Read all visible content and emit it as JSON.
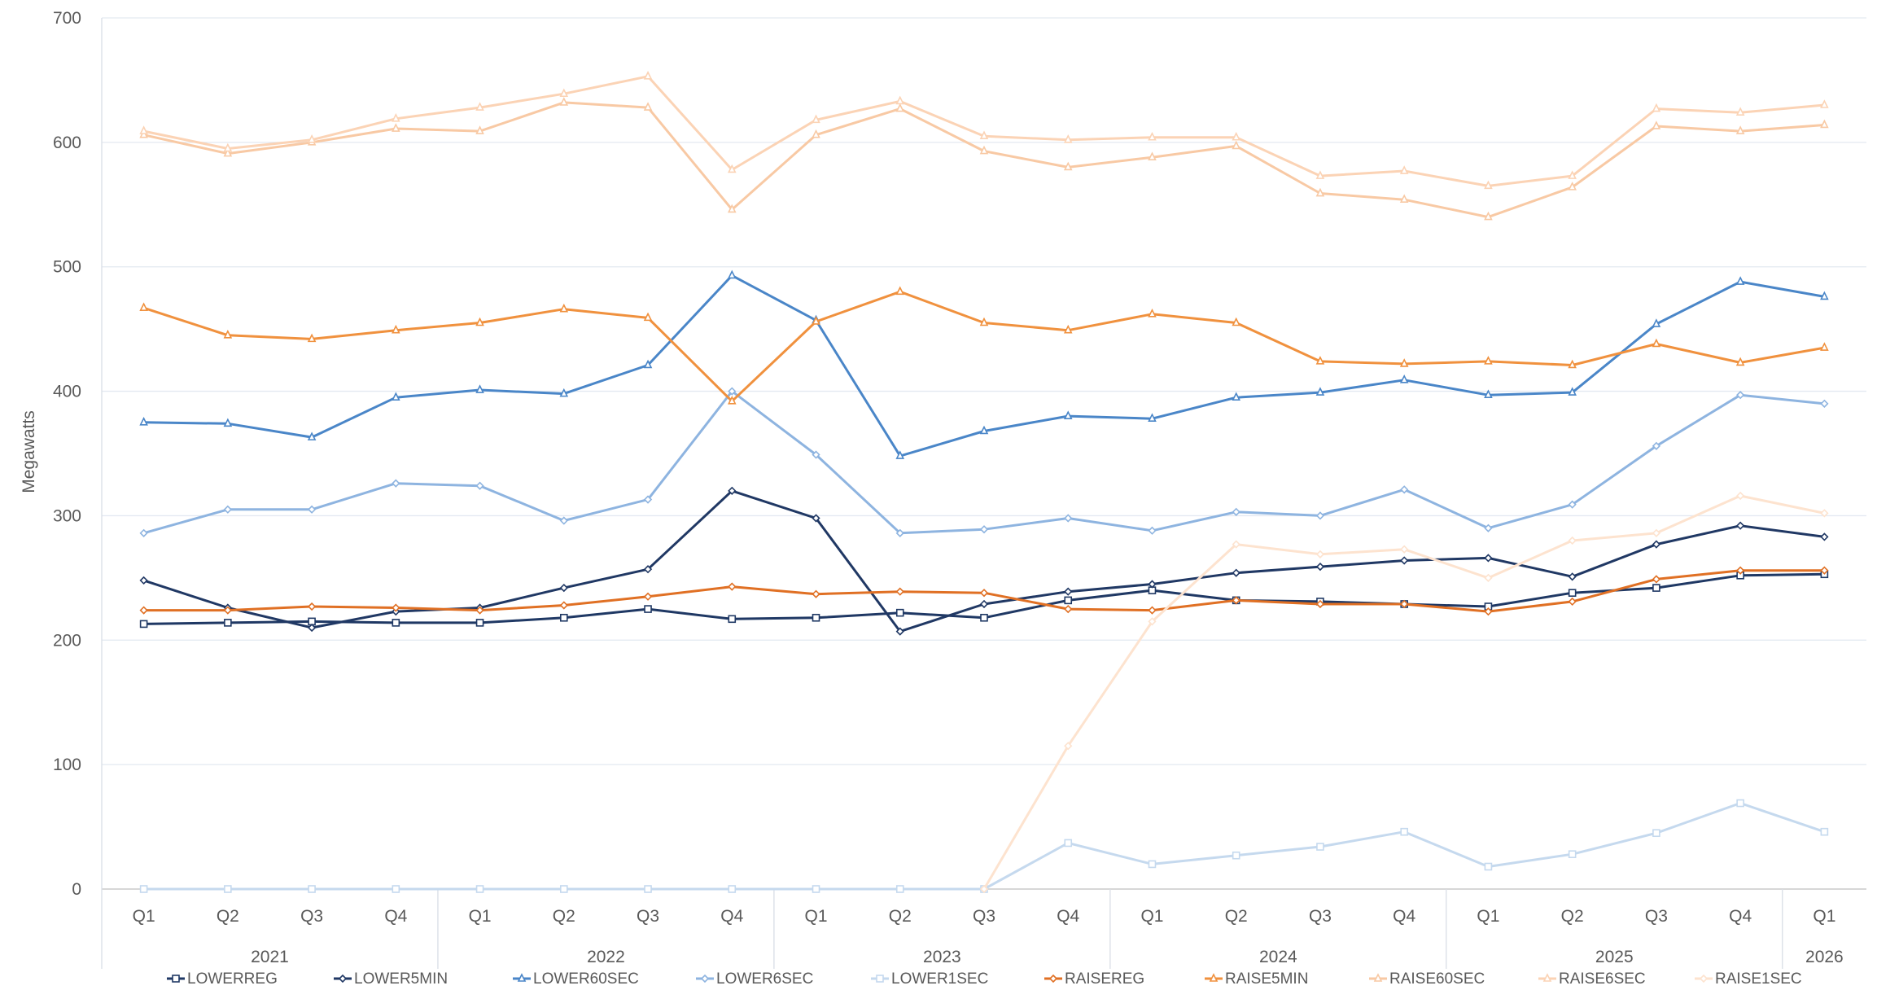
{
  "chart_data": {
    "type": "line",
    "ylabel": "Megawatts",
    "ylim": [
      0,
      700
    ],
    "yticks": [
      0,
      100,
      200,
      300,
      400,
      500,
      600,
      700
    ],
    "grid": true,
    "legend_position": "bottom",
    "categories": [
      "Q1",
      "Q2",
      "Q3",
      "Q4",
      "Q1",
      "Q2",
      "Q3",
      "Q4",
      "Q1",
      "Q2",
      "Q3",
      "Q4",
      "Q1",
      "Q2",
      "Q3",
      "Q4",
      "Q1",
      "Q2",
      "Q3",
      "Q4",
      "Q1"
    ],
    "years": [
      {
        "label": "2021",
        "count": 4
      },
      {
        "label": "2022",
        "count": 4
      },
      {
        "label": "2023",
        "count": 4
      },
      {
        "label": "2024",
        "count": 4
      },
      {
        "label": "2025",
        "count": 4
      },
      {
        "label": "2026",
        "count": 1
      }
    ],
    "series": [
      {
        "name": "LOWERREG",
        "color": "#1f3864",
        "marker": "square",
        "values": [
          213,
          214,
          215,
          214,
          214,
          218,
          225,
          217,
          218,
          222,
          218,
          232,
          240,
          232,
          231,
          229,
          227,
          238,
          242,
          252,
          253
        ]
      },
      {
        "name": "LOWER5MIN",
        "color": "#203864",
        "marker": "diamond",
        "values": [
          248,
          226,
          210,
          223,
          226,
          242,
          257,
          320,
          298,
          207,
          229,
          239,
          245,
          254,
          259,
          264,
          266,
          251,
          277,
          292,
          283
        ]
      },
      {
        "name": "LOWER60SEC",
        "color": "#4a86c8",
        "marker": "triangle",
        "values": [
          375,
          374,
          363,
          395,
          401,
          398,
          421,
          493,
          457,
          348,
          368,
          380,
          378,
          395,
          399,
          409,
          397,
          399,
          454,
          488,
          476
        ]
      },
      {
        "name": "LOWER6SEC",
        "color": "#8eb4e0",
        "marker": "diamond",
        "values": [
          286,
          305,
          305,
          326,
          324,
          296,
          313,
          400,
          349,
          286,
          289,
          298,
          288,
          303,
          300,
          321,
          290,
          309,
          356,
          397,
          390
        ]
      },
      {
        "name": "LOWER1SEC",
        "color": "#c5d9ee",
        "marker": "square",
        "values": [
          0,
          0,
          0,
          0,
          0,
          0,
          0,
          0,
          0,
          0,
          0,
          37,
          20,
          27,
          34,
          46,
          18,
          28,
          45,
          69,
          46
        ]
      },
      {
        "name": "RAISEREG",
        "color": "#e07024",
        "marker": "diamond",
        "values": [
          224,
          224,
          227,
          226,
          224,
          228,
          235,
          243,
          237,
          239,
          238,
          225,
          224,
          232,
          229,
          229,
          223,
          231,
          249,
          256,
          256
        ]
      },
      {
        "name": "RAISE5MIN",
        "color": "#f0913e",
        "marker": "triangle",
        "values": [
          467,
          445,
          442,
          449,
          455,
          466,
          459,
          392,
          456,
          480,
          455,
          449,
          462,
          455,
          424,
          422,
          424,
          421,
          438,
          423,
          435
        ]
      },
      {
        "name": "RAISE60SEC",
        "color": "#f8c9a4",
        "marker": "triangle",
        "values": [
          606,
          591,
          600,
          611,
          609,
          632,
          628,
          546,
          606,
          627,
          593,
          580,
          588,
          597,
          559,
          554,
          540,
          564,
          613,
          609,
          614
        ]
      },
      {
        "name": "RAISE6SEC",
        "color": "#fbd3b5",
        "marker": "triangle",
        "values": [
          609,
          595,
          602,
          619,
          628,
          639,
          653,
          578,
          618,
          633,
          605,
          602,
          604,
          604,
          573,
          577,
          565,
          573,
          627,
          624,
          630
        ]
      },
      {
        "name": "RAISE1SEC",
        "color": "#fde3cf",
        "marker": "diamond",
        "values": [
          null,
          null,
          null,
          null,
          null,
          null,
          null,
          null,
          null,
          null,
          0,
          115,
          215,
          277,
          269,
          273,
          250,
          280,
          286,
          316,
          302
        ]
      }
    ]
  }
}
